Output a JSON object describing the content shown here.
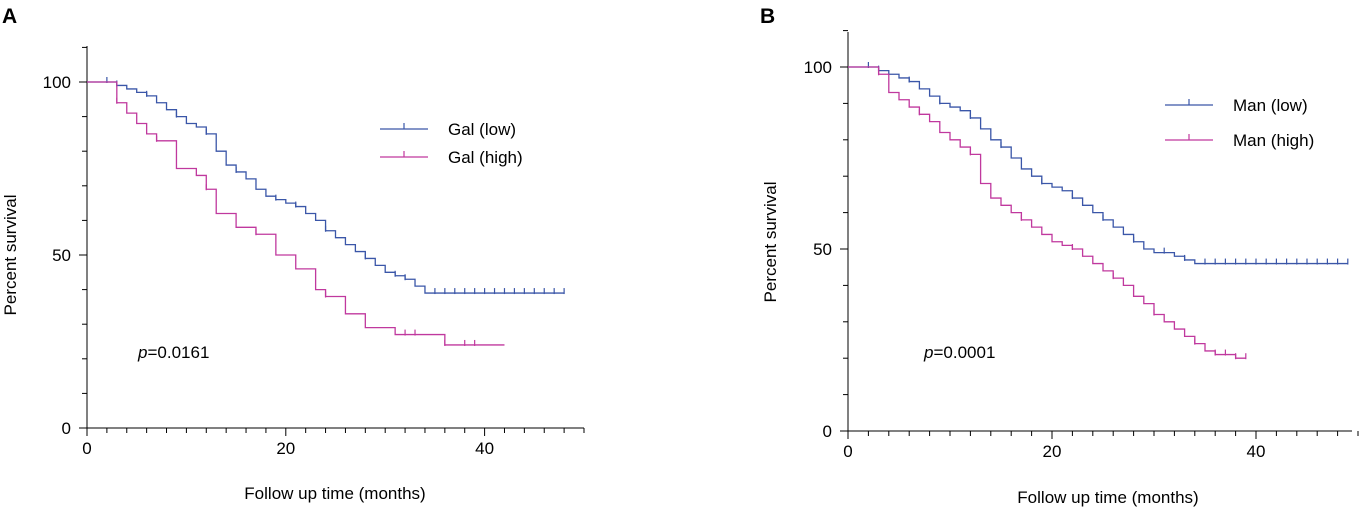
{
  "chart_data": [
    {
      "panel": "A",
      "type": "line",
      "subtype": "kaplan-meier",
      "xlabel": "Follow up time (months)",
      "ylabel": "Percent survival",
      "xlim": [
        0,
        50
      ],
      "ylim": [
        0,
        110
      ],
      "xticks": [
        0,
        20,
        40
      ],
      "yticks": [
        0,
        50,
        100
      ],
      "pvalue_prefix": "p",
      "pvalue_value": "=0.0161",
      "legend_position": "top-right",
      "series": [
        {
          "name": "Gal (low)",
          "color": "#3a56a8",
          "steps": [
            [
              0,
              100
            ],
            [
              2,
              100
            ],
            [
              3,
              99
            ],
            [
              4,
              98
            ],
            [
              5,
              97
            ],
            [
              6,
              96
            ],
            [
              7,
              94
            ],
            [
              8,
              92
            ],
            [
              9,
              90
            ],
            [
              10,
              88
            ],
            [
              11,
              87
            ],
            [
              12,
              85
            ],
            [
              13,
              80
            ],
            [
              14,
              76
            ],
            [
              15,
              74
            ],
            [
              16,
              72
            ],
            [
              17,
              69
            ],
            [
              18,
              67
            ],
            [
              19,
              66
            ],
            [
              20,
              65
            ],
            [
              21,
              64
            ],
            [
              22,
              62
            ],
            [
              23,
              60
            ],
            [
              24,
              57
            ],
            [
              25,
              55
            ],
            [
              26,
              53
            ],
            [
              27,
              51
            ],
            [
              28,
              49
            ],
            [
              29,
              47
            ],
            [
              30,
              45
            ],
            [
              31,
              44
            ],
            [
              32,
              43
            ],
            [
              33,
              41
            ],
            [
              34,
              39
            ],
            [
              48,
              39
            ]
          ],
          "censored_x": [
            2,
            3,
            6,
            9,
            12,
            15,
            19,
            21,
            24,
            28,
            31,
            32,
            35,
            36,
            37,
            38,
            39,
            40,
            41,
            42,
            43,
            44,
            45,
            46,
            47,
            48
          ]
        },
        {
          "name": "Gal (high)",
          "color": "#c0389e",
          "steps": [
            [
              0,
              100
            ],
            [
              2,
              100
            ],
            [
              3,
              94
            ],
            [
              4,
              91
            ],
            [
              5,
              88
            ],
            [
              6,
              85
            ],
            [
              7,
              83
            ],
            [
              9,
              75
            ],
            [
              11,
              73
            ],
            [
              12,
              69
            ],
            [
              13,
              62
            ],
            [
              15,
              58
            ],
            [
              17,
              56
            ],
            [
              19,
              50
            ],
            [
              21,
              46
            ],
            [
              23,
              40
            ],
            [
              24,
              38
            ],
            [
              26,
              33
            ],
            [
              28,
              29
            ],
            [
              31,
              27
            ],
            [
              36,
              24
            ],
            [
              42,
              24
            ]
          ],
          "censored_x": [
            3,
            7,
            12,
            17,
            24,
            32,
            33,
            36,
            38,
            39
          ]
        }
      ]
    },
    {
      "panel": "B",
      "type": "line",
      "subtype": "kaplan-meier",
      "xlabel": "Follow up time (months)",
      "ylabel": "Percent survival",
      "xlim": [
        0,
        50
      ],
      "ylim": [
        0,
        110
      ],
      "xticks": [
        0,
        20,
        40
      ],
      "yticks": [
        0,
        50,
        100
      ],
      "pvalue_prefix": "p",
      "pvalue_value": "=0.0001",
      "legend_position": "top-right",
      "series": [
        {
          "name": "Man (low)",
          "color": "#3a56a8",
          "steps": [
            [
              0,
              100
            ],
            [
              2,
              100
            ],
            [
              3,
              99
            ],
            [
              4,
              98
            ],
            [
              5,
              97
            ],
            [
              6,
              96
            ],
            [
              7,
              94
            ],
            [
              8,
              92
            ],
            [
              9,
              90
            ],
            [
              10,
              89
            ],
            [
              11,
              88
            ],
            [
              12,
              86
            ],
            [
              13,
              83
            ],
            [
              14,
              80
            ],
            [
              15,
              78
            ],
            [
              16,
              75
            ],
            [
              17,
              72
            ],
            [
              18,
              70
            ],
            [
              19,
              68
            ],
            [
              20,
              67
            ],
            [
              21,
              66
            ],
            [
              22,
              64
            ],
            [
              23,
              62
            ],
            [
              24,
              60
            ],
            [
              25,
              58
            ],
            [
              26,
              56
            ],
            [
              27,
              54
            ],
            [
              28,
              52
            ],
            [
              29,
              50
            ],
            [
              30,
              49
            ],
            [
              32,
              48
            ],
            [
              33,
              47
            ],
            [
              34,
              46
            ],
            [
              49,
              46
            ]
          ],
          "censored_x": [
            2,
            3,
            6,
            9,
            12,
            15,
            19,
            22,
            25,
            28,
            31,
            33,
            35,
            36,
            37,
            38,
            39,
            40,
            41,
            42,
            43,
            44,
            45,
            46,
            47,
            48,
            49
          ]
        },
        {
          "name": "Man (high)",
          "color": "#c0389e",
          "steps": [
            [
              0,
              100
            ],
            [
              2,
              100
            ],
            [
              3,
              98
            ],
            [
              4,
              93
            ],
            [
              5,
              91
            ],
            [
              6,
              89
            ],
            [
              7,
              87
            ],
            [
              8,
              85
            ],
            [
              9,
              82
            ],
            [
              10,
              80
            ],
            [
              11,
              78
            ],
            [
              12,
              76
            ],
            [
              13,
              68
            ],
            [
              14,
              64
            ],
            [
              15,
              62
            ],
            [
              16,
              60
            ],
            [
              17,
              58
            ],
            [
              18,
              56
            ],
            [
              19,
              54
            ],
            [
              20,
              52
            ],
            [
              21,
              51
            ],
            [
              22,
              50
            ],
            [
              23,
              48
            ],
            [
              24,
              46
            ],
            [
              25,
              44
            ],
            [
              26,
              42
            ],
            [
              27,
              40
            ],
            [
              28,
              37
            ],
            [
              29,
              35
            ],
            [
              30,
              32
            ],
            [
              31,
              30
            ],
            [
              32,
              28
            ],
            [
              33,
              26
            ],
            [
              34,
              24
            ],
            [
              35,
              22
            ],
            [
              36,
              21
            ],
            [
              38,
              20
            ],
            [
              39,
              20
            ]
          ],
          "censored_x": [
            3,
            7,
            12,
            17,
            22,
            26,
            30,
            34,
            36,
            37,
            38,
            39
          ]
        }
      ]
    }
  ]
}
